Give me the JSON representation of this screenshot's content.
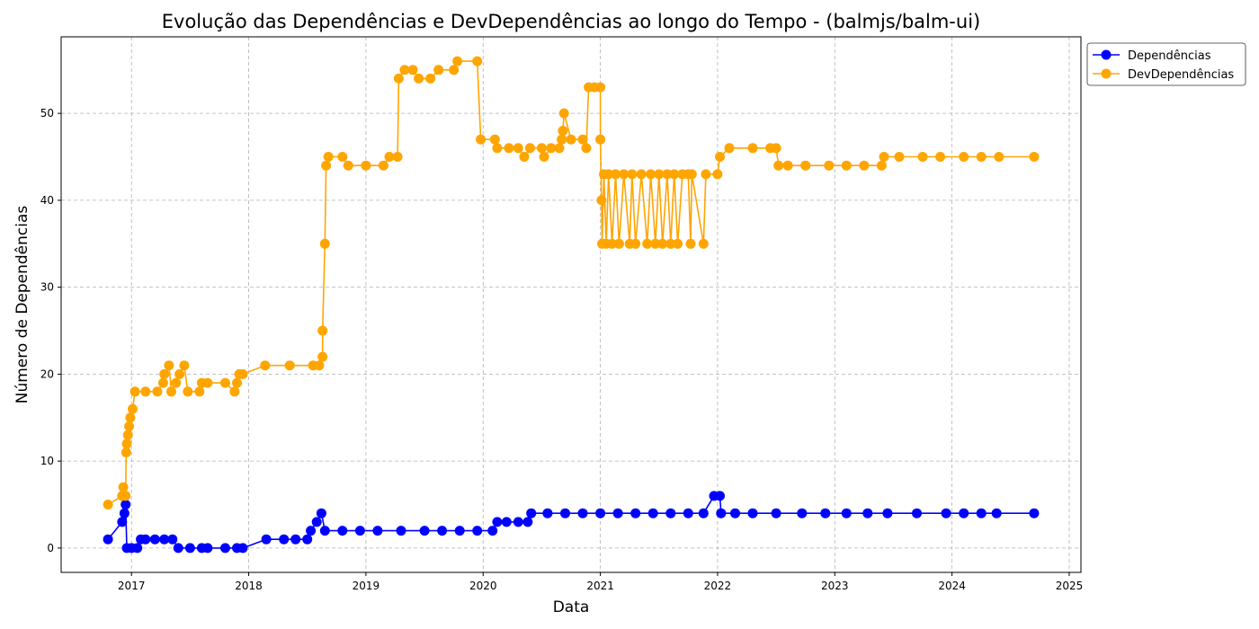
{
  "chart_data": {
    "type": "line",
    "title": "Evolução das Dependências e DevDependências ao longo do Tempo - (balmjs/balm-ui)",
    "xlabel": "Data",
    "ylabel": "Número de Dependências",
    "xlim": [
      2016.4,
      2025.1
    ],
    "ylim": [
      -2.8,
      58.8
    ],
    "x_ticks": [
      {
        "value": 2017,
        "label": "2017"
      },
      {
        "value": 2018,
        "label": "2018"
      },
      {
        "value": 2019,
        "label": "2019"
      },
      {
        "value": 2020,
        "label": "2020"
      },
      {
        "value": 2021,
        "label": "2021"
      },
      {
        "value": 2022,
        "label": "2022"
      },
      {
        "value": 2023,
        "label": "2023"
      },
      {
        "value": 2024,
        "label": "2024"
      },
      {
        "value": 2025,
        "label": "2025"
      }
    ],
    "y_ticks": [
      {
        "value": 0,
        "label": "0"
      },
      {
        "value": 10,
        "label": "10"
      },
      {
        "value": 20,
        "label": "20"
      },
      {
        "value": 30,
        "label": "30"
      },
      {
        "value": 40,
        "label": "40"
      },
      {
        "value": 50,
        "label": "50"
      }
    ],
    "grid": true,
    "legend_position": "outside-top-right",
    "series": [
      {
        "name": "Dependências",
        "color": "#0000ff",
        "points": [
          [
            2016.8,
            1
          ],
          [
            2016.92,
            3
          ],
          [
            2016.94,
            4
          ],
          [
            2016.95,
            5
          ],
          [
            2016.96,
            0
          ],
          [
            2017.0,
            0
          ],
          [
            2017.05,
            0
          ],
          [
            2017.08,
            1
          ],
          [
            2017.12,
            1
          ],
          [
            2017.2,
            1
          ],
          [
            2017.28,
            1
          ],
          [
            2017.35,
            1
          ],
          [
            2017.4,
            0
          ],
          [
            2017.5,
            0
          ],
          [
            2017.6,
            0
          ],
          [
            2017.65,
            0
          ],
          [
            2017.8,
            0
          ],
          [
            2017.9,
            0
          ],
          [
            2017.95,
            0
          ],
          [
            2018.15,
            1
          ],
          [
            2018.3,
            1
          ],
          [
            2018.4,
            1
          ],
          [
            2018.5,
            1
          ],
          [
            2018.53,
            2
          ],
          [
            2018.58,
            3
          ],
          [
            2018.62,
            4
          ],
          [
            2018.65,
            2
          ],
          [
            2018.8,
            2
          ],
          [
            2018.95,
            2
          ],
          [
            2019.1,
            2
          ],
          [
            2019.3,
            2
          ],
          [
            2019.5,
            2
          ],
          [
            2019.65,
            2
          ],
          [
            2019.8,
            2
          ],
          [
            2019.95,
            2
          ],
          [
            2020.08,
            2
          ],
          [
            2020.12,
            3
          ],
          [
            2020.2,
            3
          ],
          [
            2020.3,
            3
          ],
          [
            2020.38,
            3
          ],
          [
            2020.41,
            4
          ],
          [
            2020.55,
            4
          ],
          [
            2020.7,
            4
          ],
          [
            2020.85,
            4
          ],
          [
            2021.0,
            4
          ],
          [
            2021.15,
            4
          ],
          [
            2021.3,
            4
          ],
          [
            2021.45,
            4
          ],
          [
            2021.6,
            4
          ],
          [
            2021.75,
            4
          ],
          [
            2021.88,
            4
          ],
          [
            2021.97,
            6
          ],
          [
            2022.02,
            6
          ],
          [
            2022.03,
            4
          ],
          [
            2022.15,
            4
          ],
          [
            2022.3,
            4
          ],
          [
            2022.5,
            4
          ],
          [
            2022.72,
            4
          ],
          [
            2022.92,
            4
          ],
          [
            2023.1,
            4
          ],
          [
            2023.28,
            4
          ],
          [
            2023.45,
            4
          ],
          [
            2023.7,
            4
          ],
          [
            2023.95,
            4
          ],
          [
            2024.1,
            4
          ],
          [
            2024.25,
            4
          ],
          [
            2024.38,
            4
          ],
          [
            2024.7,
            4
          ]
        ]
      },
      {
        "name": "DevDependências",
        "color": "#ffa500",
        "points": [
          [
            2016.8,
            5
          ],
          [
            2016.92,
            6
          ],
          [
            2016.93,
            7
          ],
          [
            2016.95,
            6
          ],
          [
            2016.955,
            11
          ],
          [
            2016.96,
            12
          ],
          [
            2016.97,
            13
          ],
          [
            2016.98,
            14
          ],
          [
            2016.99,
            15
          ],
          [
            2017.01,
            16
          ],
          [
            2017.03,
            18
          ],
          [
            2017.12,
            18
          ],
          [
            2017.22,
            18
          ],
          [
            2017.27,
            19
          ],
          [
            2017.28,
            20
          ],
          [
            2017.32,
            21
          ],
          [
            2017.34,
            18
          ],
          [
            2017.38,
            19
          ],
          [
            2017.41,
            20
          ],
          [
            2017.45,
            21
          ],
          [
            2017.48,
            18
          ],
          [
            2017.58,
            18
          ],
          [
            2017.6,
            19
          ],
          [
            2017.65,
            19
          ],
          [
            2017.8,
            19
          ],
          [
            2017.88,
            18
          ],
          [
            2017.9,
            19
          ],
          [
            2017.92,
            20
          ],
          [
            2017.95,
            20
          ],
          [
            2018.14,
            21
          ],
          [
            2018.35,
            21
          ],
          [
            2018.55,
            21
          ],
          [
            2018.6,
            21
          ],
          [
            2018.63,
            22
          ],
          [
            2018.63,
            25
          ],
          [
            2018.65,
            35
          ],
          [
            2018.66,
            44
          ],
          [
            2018.68,
            45
          ],
          [
            2018.8,
            45
          ],
          [
            2018.85,
            44
          ],
          [
            2019.0,
            44
          ],
          [
            2019.15,
            44
          ],
          [
            2019.2,
            45
          ],
          [
            2019.27,
            45
          ],
          [
            2019.28,
            54
          ],
          [
            2019.33,
            55
          ],
          [
            2019.4,
            55
          ],
          [
            2019.45,
            54
          ],
          [
            2019.55,
            54
          ],
          [
            2019.62,
            55
          ],
          [
            2019.75,
            55
          ],
          [
            2019.78,
            56
          ],
          [
            2019.95,
            56
          ],
          [
            2019.98,
            47
          ],
          [
            2020.1,
            47
          ],
          [
            2020.12,
            46
          ],
          [
            2020.22,
            46
          ],
          [
            2020.3,
            46
          ],
          [
            2020.35,
            45
          ],
          [
            2020.4,
            46
          ],
          [
            2020.5,
            46
          ],
          [
            2020.52,
            45
          ],
          [
            2020.58,
            46
          ],
          [
            2020.65,
            46
          ],
          [
            2020.67,
            47
          ],
          [
            2020.68,
            48
          ],
          [
            2020.69,
            50
          ],
          [
            2020.75,
            47
          ],
          [
            2020.85,
            47
          ],
          [
            2020.88,
            46
          ],
          [
            2020.9,
            53
          ],
          [
            2020.95,
            53
          ],
          [
            2021.0,
            53
          ],
          [
            2021.0,
            47
          ],
          [
            2021.01,
            40
          ],
          [
            2021.015,
            35
          ],
          [
            2021.03,
            43
          ],
          [
            2021.05,
            35
          ],
          [
            2021.07,
            43
          ],
          [
            2021.1,
            35
          ],
          [
            2021.13,
            43
          ],
          [
            2021.16,
            35
          ],
          [
            2021.2,
            43
          ],
          [
            2021.25,
            35
          ],
          [
            2021.27,
            43
          ],
          [
            2021.3,
            35
          ],
          [
            2021.35,
            43
          ],
          [
            2021.4,
            35
          ],
          [
            2021.43,
            43
          ],
          [
            2021.47,
            35
          ],
          [
            2021.5,
            43
          ],
          [
            2021.53,
            35
          ],
          [
            2021.57,
            43
          ],
          [
            2021.6,
            35
          ],
          [
            2021.63,
            43
          ],
          [
            2021.66,
            35
          ],
          [
            2021.7,
            43
          ],
          [
            2021.75,
            43
          ],
          [
            2021.77,
            35
          ],
          [
            2021.78,
            43
          ],
          [
            2021.88,
            35
          ],
          [
            2021.9,
            43
          ],
          [
            2022.0,
            43
          ],
          [
            2022.02,
            45
          ],
          [
            2022.1,
            46
          ],
          [
            2022.3,
            46
          ],
          [
            2022.45,
            46
          ],
          [
            2022.5,
            46
          ],
          [
            2022.52,
            44
          ],
          [
            2022.6,
            44
          ],
          [
            2022.75,
            44
          ],
          [
            2022.95,
            44
          ],
          [
            2023.1,
            44
          ],
          [
            2023.25,
            44
          ],
          [
            2023.4,
            44
          ],
          [
            2023.42,
            45
          ],
          [
            2023.55,
            45
          ],
          [
            2023.75,
            45
          ],
          [
            2023.9,
            45
          ],
          [
            2024.1,
            45
          ],
          [
            2024.25,
            45
          ],
          [
            2024.4,
            45
          ],
          [
            2024.7,
            45
          ]
        ]
      }
    ]
  }
}
